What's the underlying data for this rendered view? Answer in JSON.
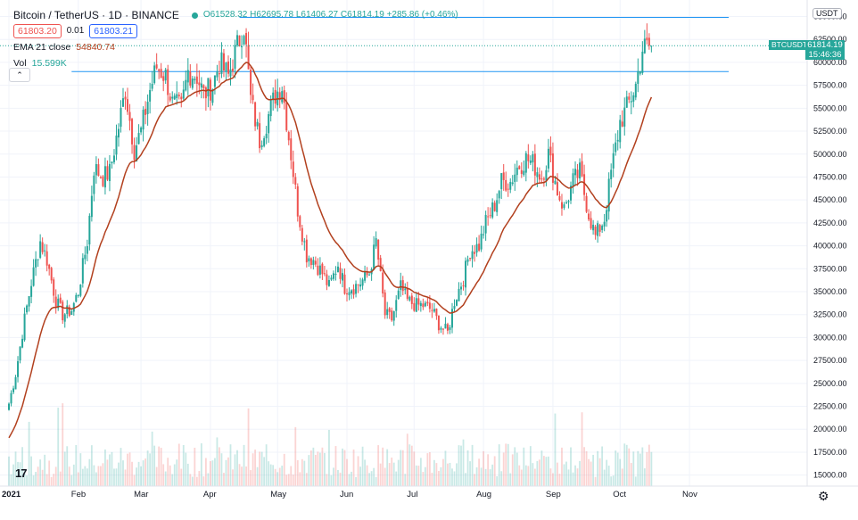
{
  "header": {
    "symbol_title": "Bitcoin / TetherUS · 1D · BINANCE",
    "ohlc": "O61528.32 H62695.78 L61406.27 C61814.19 +285.86 (+0.46%)",
    "bid_price": "61803.20",
    "spread": "0.01",
    "ask_price": "61803.21"
  },
  "indicators": {
    "ema_label": "EMA 21 close",
    "ema_value": "54840.74",
    "vol_label": "Vol",
    "vol_value": "15.599K"
  },
  "price_scale": {
    "currency": "USDT",
    "last_price": "61814.19",
    "countdown": "15:46:36",
    "symbol_tag": "BTCUSDT"
  },
  "colors": {
    "up": "#26a69a",
    "down": "#ef5350",
    "ema": "#b2401e",
    "hline": "#2196f3"
  },
  "chart_data": {
    "type": "candlestick",
    "title": "Bitcoin / TetherUS 1D BINANCE",
    "y_ticks": [
      "65000.00",
      "62500.00",
      "60000.00",
      "57500.00",
      "55000.00",
      "52500.00",
      "50000.00",
      "47500.00",
      "45000.00",
      "42500.00",
      "40000.00",
      "37500.00",
      "35000.00",
      "32500.00",
      "30000.00",
      "27500.00",
      "25000.00",
      "22500.00",
      "20000.00",
      "17500.00",
      "15000.00"
    ],
    "x_ticks": [
      "2021",
      "Feb",
      "Mar",
      "Apr",
      "May",
      "Jun",
      "Jul",
      "Aug",
      "Sep",
      "Oct",
      "Nov"
    ],
    "ylim": [
      13800,
      66800
    ],
    "horizontal_lines": [
      {
        "price": 64900,
        "from_day": 103
      },
      {
        "price": 59000,
        "from_day": 28
      }
    ],
    "weekly_closes": [
      [
        0,
        22800
      ],
      [
        3,
        26000
      ],
      [
        7,
        32000
      ],
      [
        10,
        36000
      ],
      [
        14,
        40500
      ],
      [
        17,
        38500
      ],
      [
        21,
        34000
      ],
      [
        24,
        32500
      ],
      [
        28,
        33000
      ],
      [
        31,
        35000
      ],
      [
        35,
        40500
      ],
      [
        38,
        48500
      ],
      [
        42,
        47500
      ],
      [
        45,
        48000
      ],
      [
        49,
        53000
      ],
      [
        52,
        57000
      ],
      [
        56,
        50500
      ],
      [
        59,
        52500
      ],
      [
        63,
        57000
      ],
      [
        66,
        59500
      ],
      [
        70,
        58500
      ],
      [
        73,
        55500
      ],
      [
        77,
        55000
      ],
      [
        80,
        59000
      ],
      [
        84,
        58500
      ],
      [
        87,
        56500
      ],
      [
        91,
        57500
      ],
      [
        94,
        60000
      ],
      [
        98,
        58500
      ],
      [
        101,
        61000
      ],
      [
        105,
        64000
      ],
      [
        108,
        56000
      ],
      [
        112,
        51500
      ],
      [
        115,
        53500
      ],
      [
        119,
        56500
      ],
      [
        122,
        57500
      ],
      [
        126,
        50000
      ],
      [
        129,
        44000
      ],
      [
        133,
        39000
      ],
      [
        136,
        38500
      ],
      [
        140,
        37000
      ],
      [
        143,
        35500
      ],
      [
        147,
        38000
      ],
      [
        150,
        35500
      ],
      [
        154,
        35500
      ],
      [
        157,
        36000
      ],
      [
        161,
        37000
      ],
      [
        164,
        40500
      ],
      [
        168,
        32500
      ],
      [
        171,
        32000
      ],
      [
        175,
        35500
      ],
      [
        178,
        34000
      ],
      [
        182,
        33500
      ],
      [
        185,
        33500
      ],
      [
        189,
        33000
      ],
      [
        192,
        31500
      ],
      [
        196,
        30500
      ],
      [
        199,
        34000
      ],
      [
        203,
        36500
      ],
      [
        206,
        39500
      ],
      [
        210,
        40000
      ],
      [
        213,
        42500
      ],
      [
        217,
        44500
      ],
      [
        220,
        47000
      ],
      [
        224,
        47000
      ],
      [
        227,
        48500
      ],
      [
        231,
        49500
      ],
      [
        234,
        49000
      ],
      [
        238,
        47500
      ],
      [
        241,
        50000
      ],
      [
        245,
        46000
      ],
      [
        248,
        44000
      ],
      [
        252,
        47000
      ],
      [
        255,
        48000
      ],
      [
        259,
        43500
      ],
      [
        262,
        41000
      ],
      [
        266,
        43000
      ],
      [
        269,
        48000
      ],
      [
        273,
        53500
      ],
      [
        276,
        55000
      ],
      [
        280,
        57500
      ],
      [
        283,
        61500
      ],
      [
        287,
        61800
      ]
    ]
  }
}
